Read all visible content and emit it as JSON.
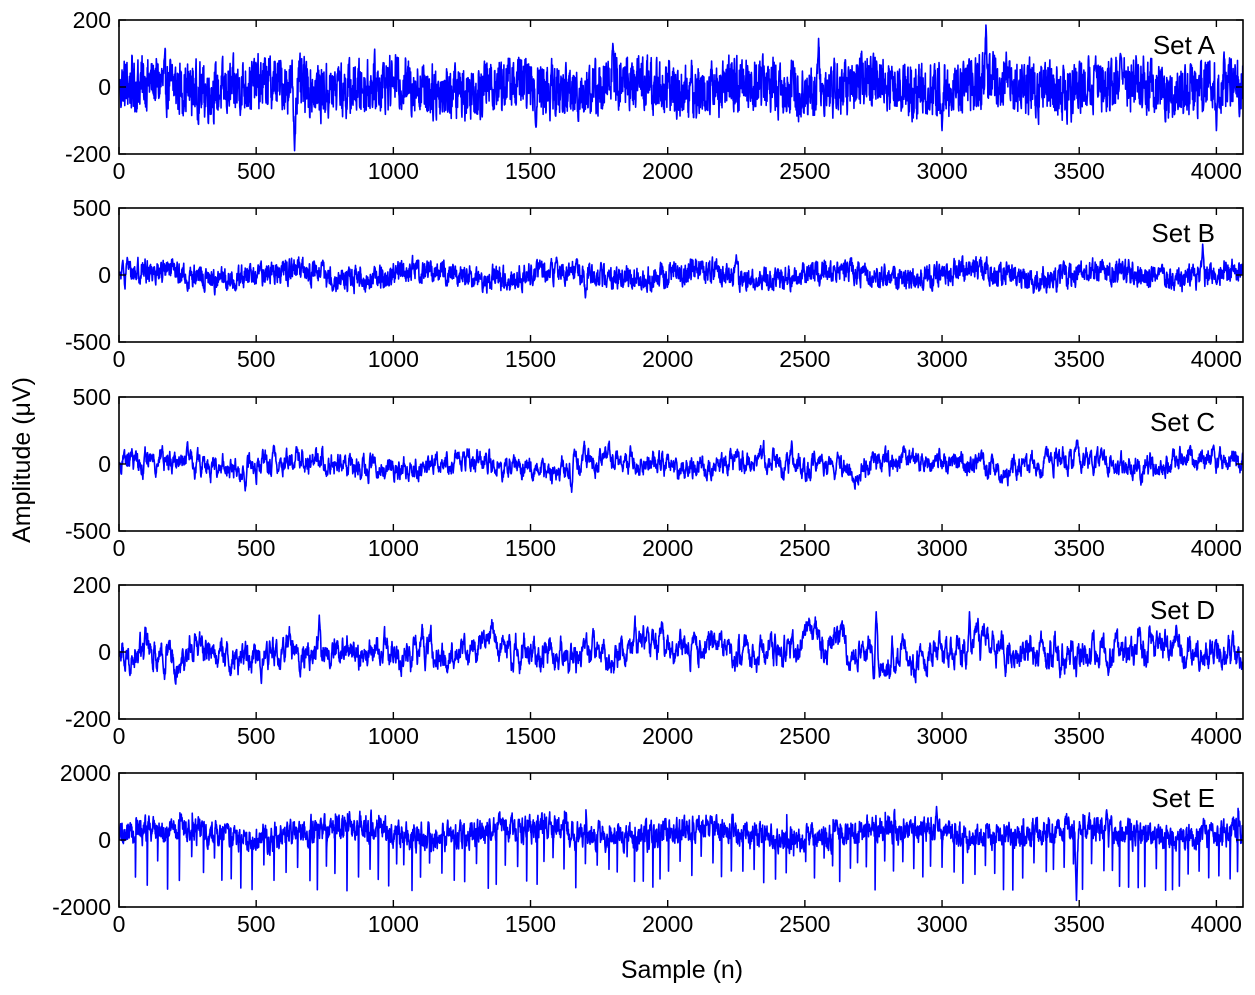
{
  "chart_data": {
    "type": "line",
    "xlabel": "Sample (n)",
    "ylabel": "Amplitude (μV)",
    "xlim": [
      0,
      4097
    ],
    "x_ticks": [
      0,
      500,
      1000,
      1500,
      2000,
      2500,
      3000,
      3500,
      4000
    ],
    "line_color": "#0000ff",
    "grid": false,
    "panels": [
      {
        "label": "Set A",
        "ylim": [
          -200,
          200
        ],
        "y_ticks": [
          -200,
          0,
          200
        ],
        "description_points": [
          [
            0,
            0
          ],
          [
            640,
            -190
          ],
          [
            800,
            60
          ],
          [
            1000,
            20
          ],
          [
            1520,
            -120
          ],
          [
            1800,
            130
          ],
          [
            2550,
            145
          ],
          [
            3000,
            -130
          ],
          [
            3160,
            185
          ],
          [
            3650,
            100
          ],
          [
            4000,
            -130
          ]
        ]
      },
      {
        "label": "Set B",
        "ylim": [
          -500,
          500
        ],
        "y_ticks": [
          -500,
          0,
          500
        ],
        "description_points": [
          [
            0,
            0
          ],
          [
            30,
            130
          ],
          [
            250,
            -120
          ],
          [
            1700,
            -170
          ],
          [
            2250,
            150
          ],
          [
            3950,
            230
          ]
        ]
      },
      {
        "label": "Set C",
        "ylim": [
          -500,
          500
        ],
        "y_ticks": [
          -500,
          0,
          500
        ],
        "description_points": [
          [
            0,
            0
          ],
          [
            460,
            -200
          ],
          [
            1650,
            -210
          ],
          [
            1660,
            110
          ],
          [
            3990,
            140
          ]
        ]
      },
      {
        "label": "Set D",
        "ylim": [
          -200,
          200
        ],
        "y_ticks": [
          -200,
          0,
          200
        ],
        "description_points": [
          [
            0,
            0
          ],
          [
            40,
            -70
          ],
          [
            730,
            110
          ],
          [
            2760,
            120
          ],
          [
            3100,
            120
          ]
        ]
      },
      {
        "label": "Set E",
        "ylim": [
          -2000,
          2000
        ],
        "y_ticks": [
          -2000,
          0,
          2000
        ],
        "description_points": [
          [
            0,
            0
          ],
          [
            2980,
            1000
          ],
          [
            3490,
            -1800
          ],
          [
            3600,
            900
          ]
        ]
      }
    ]
  }
}
